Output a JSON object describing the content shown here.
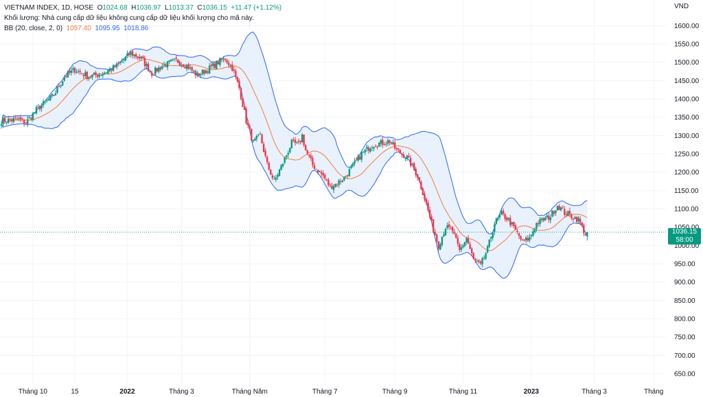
{
  "legend": {
    "symbol": "VIETNAM INDEX, 1D, HOSE",
    "o_label": "O",
    "o": "1024.68",
    "h_label": "H",
    "h": "1036.97",
    "l_label": "L",
    "l": "1013.37",
    "c_label": "C",
    "c": "1036.15",
    "change": "+11.47 (+1.12%)",
    "volume_note": "Khối lượng: Nhà cung cấp dữ liệu không cung cấp dữ liệu khối lượng cho mã này.",
    "bb_label": "BB (20, close, 2, 0)",
    "bb_mid": "1057.40",
    "bb_upper": "1095.95",
    "bb_lower": "1018.86"
  },
  "price_tag": {
    "price": "1036.15",
    "countdown": "58:00"
  },
  "colors": {
    "up": "#089981",
    "down": "#f23645",
    "bb_mid": "#f7773b",
    "bb_band": "#2962ff",
    "bb_fill": "#e3effb",
    "grid": "#f0f3fa",
    "text": "#131722"
  },
  "chart_data": {
    "type": "candlestick",
    "symbol": "VIETNAM INDEX",
    "timeframe": "1D",
    "exchange": "HOSE",
    "y_unit": "VND",
    "ylim": [
      620,
      1670
    ],
    "y_ticks": [
      650,
      700,
      750,
      800,
      850,
      900,
      950,
      1000,
      1050,
      1100,
      1150,
      1200,
      1250,
      1300,
      1350,
      1400,
      1450,
      1500,
      1550,
      1600
    ],
    "y_tick_labels": [
      "650.00",
      "700.00",
      "750.00",
      "800.00",
      "850.00",
      "900.00",
      "950.00",
      "1000.00",
      "1050.00",
      "1100.00",
      "1150.00",
      "1200.00",
      "1250.00",
      "1300.00",
      "1350.00",
      "1400.00",
      "1450.00",
      "1500.00",
      "1550.00",
      "1600.00"
    ],
    "x_tick_labels": [
      {
        "label": "Tháng 10",
        "i": 18,
        "bold": false
      },
      {
        "label": "15",
        "i": 42,
        "bold": false
      },
      {
        "label": "2022",
        "i": 72,
        "bold": true
      },
      {
        "label": "Tháng 3",
        "i": 103,
        "bold": false
      },
      {
        "label": "Tháng Năm",
        "i": 142,
        "bold": false
      },
      {
        "label": "Tháng 7",
        "i": 185,
        "bold": false
      },
      {
        "label": "Tháng 9",
        "i": 225,
        "bold": false
      },
      {
        "label": "Tháng 11",
        "i": 264,
        "bold": false
      },
      {
        "label": "2023",
        "i": 303,
        "bold": true
      },
      {
        "label": "Tháng 3",
        "i": 339,
        "bold": false
      },
      {
        "label": "Tháng",
        "i": 373,
        "bold": false
      }
    ],
    "index_range": [
      0,
      380
    ],
    "bars_total": 336,
    "close_anchors": [
      [
        0,
        1340
      ],
      [
        10,
        1345
      ],
      [
        14,
        1335
      ],
      [
        20,
        1370
      ],
      [
        30,
        1410
      ],
      [
        36,
        1460
      ],
      [
        42,
        1480
      ],
      [
        50,
        1460
      ],
      [
        58,
        1470
      ],
      [
        66,
        1490
      ],
      [
        74,
        1525
      ],
      [
        80,
        1510
      ],
      [
        86,
        1470
      ],
      [
        92,
        1490
      ],
      [
        100,
        1505
      ],
      [
        106,
        1490
      ],
      [
        112,
        1465
      ],
      [
        118,
        1480
      ],
      [
        124,
        1500
      ],
      [
        128,
        1510
      ],
      [
        132,
        1485
      ],
      [
        136,
        1430
      ],
      [
        140,
        1340
      ],
      [
        144,
        1280
      ],
      [
        148,
        1300
      ],
      [
        152,
        1220
      ],
      [
        156,
        1175
      ],
      [
        160,
        1215
      ],
      [
        166,
        1280
      ],
      [
        170,
        1275
      ],
      [
        172,
        1300
      ],
      [
        174,
        1260
      ],
      [
        178,
        1220
      ],
      [
        184,
        1190
      ],
      [
        188,
        1160
      ],
      [
        192,
        1170
      ],
      [
        196,
        1185
      ],
      [
        200,
        1210
      ],
      [
        206,
        1250
      ],
      [
        212,
        1275
      ],
      [
        218,
        1280
      ],
      [
        222,
        1285
      ],
      [
        226,
        1260
      ],
      [
        232,
        1240
      ],
      [
        238,
        1190
      ],
      [
        242,
        1130
      ],
      [
        246,
        1060
      ],
      [
        250,
        1000
      ],
      [
        254,
        1050
      ],
      [
        258,
        1040
      ],
      [
        262,
        985
      ],
      [
        266,
        1020
      ],
      [
        270,
        960
      ],
      [
        274,
        945
      ],
      [
        278,
        990
      ],
      [
        282,
        1060
      ],
      [
        286,
        1085
      ],
      [
        290,
        1070
      ],
      [
        294,
        1040
      ],
      [
        298,
        1010
      ],
      [
        302,
        1020
      ],
      [
        306,
        1060
      ],
      [
        310,
        1070
      ],
      [
        314,
        1080
      ],
      [
        318,
        1110
      ],
      [
        322,
        1090
      ],
      [
        326,
        1080
      ],
      [
        330,
        1070
      ],
      [
        334,
        1030
      ],
      [
        335,
        1036.15
      ]
    ]
  }
}
